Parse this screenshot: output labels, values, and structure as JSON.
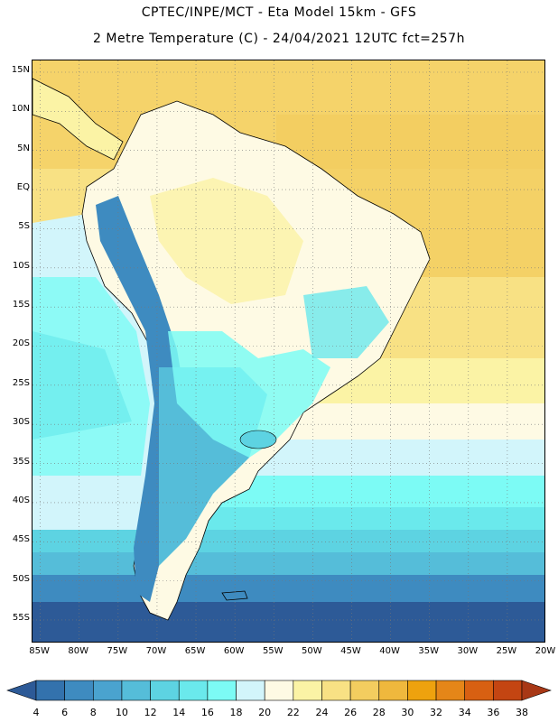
{
  "header": {
    "line1": "CPTEC/INPE/MCT -  Eta Model 15km - GFS",
    "line2": "2 Metre Temperature (C) - 24/04/2021 12UTC fct=257h"
  },
  "map": {
    "lat_range": [
      -58,
      16.5
    ],
    "lon_range": [
      -86,
      -20
    ],
    "lat_ticks": [
      "15N",
      "10N",
      "5N",
      "EQ",
      "5S",
      "10S",
      "15S",
      "20S",
      "25S",
      "30S",
      "35S",
      "40S",
      "45S",
      "50S",
      "55S"
    ],
    "lon_ticks": [
      "85W",
      "80W",
      "75W",
      "70W",
      "65W",
      "60W",
      "55W",
      "50W",
      "45W",
      "40W",
      "35W",
      "30W",
      "25W",
      "20W"
    ]
  },
  "colorbar": {
    "labels": [
      "4",
      "6",
      "8",
      "10",
      "12",
      "14",
      "16",
      "18",
      "20",
      "22",
      "24",
      "26",
      "28",
      "30",
      "32",
      "34",
      "36",
      "38"
    ],
    "colors": [
      "#2d5a97",
      "#3372ad",
      "#3e8bc0",
      "#4aa3cf",
      "#55bdd9",
      "#5dd3e2",
      "#6ae9ec",
      "#7cfbf5",
      "#d2f5fb",
      "#fefae4",
      "#fbf3a5",
      "#f8e184",
      "#f3cd5f",
      "#efb83d",
      "#eea20e",
      "#e58618",
      "#d86012",
      "#c44512",
      "#a83816"
    ]
  }
}
